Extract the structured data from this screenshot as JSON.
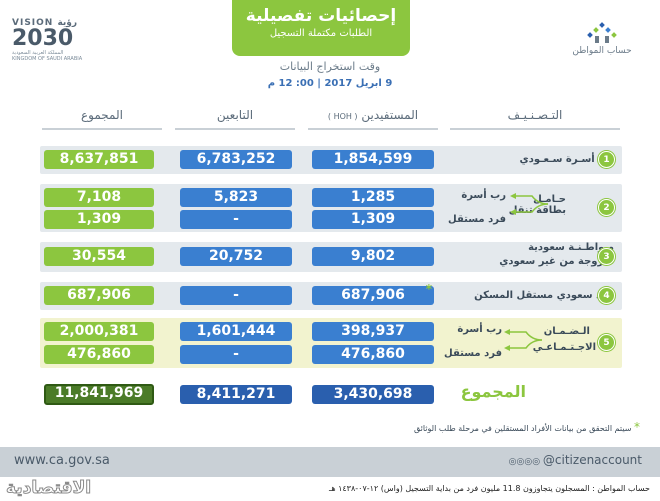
{
  "header": {
    "vision": {
      "line1": "VISION رؤية",
      "line2": "2030",
      "line3": "المملكة العربية السعودية",
      "line4": "KINGDOM OF SAUDI ARABIA"
    },
    "title": "إحصائيات تفصيلية",
    "subtitle": "الطلبات مكتملة التسجيل",
    "logo_text": "حساب المواطن",
    "extract_label": "وقت استخراج البيانات",
    "extract_time": "9 ابريل 2017 | 00: 12 م"
  },
  "columns": {
    "category": "التـصـنـيـف",
    "beneficiaries": "المستفيدين",
    "beneficiaries_note": "( HOH )",
    "dependents": "التابعين",
    "total": "المجموع"
  },
  "rows": [
    {
      "num": "1",
      "label": "رب أسـرة سـعـودي",
      "beneficiaries": "1,854,599",
      "dependents": "6,783,252",
      "total": "8,637,851"
    },
    {
      "num": "2",
      "label": "حـامـل بطاقة تنقل",
      "sub": [
        {
          "label": "رب أسرة",
          "beneficiaries": "1,285",
          "dependents": "5,823",
          "total": "7,108"
        },
        {
          "label": "فرد مستقل",
          "beneficiaries": "1,309",
          "dependents": "-",
          "total": "1,309"
        }
      ]
    },
    {
      "num": "3",
      "label": "مـواطـنـة سعودية",
      "label2": "متزوجة من غير سعودي",
      "beneficiaries": "9,802",
      "dependents": "20,752",
      "total": "30,554"
    },
    {
      "num": "4",
      "label": "فرد سعودي مستقل المسكن",
      "star": "*",
      "beneficiaries": "687,906",
      "dependents": "-",
      "total": "687,906"
    },
    {
      "num": "5",
      "label": "الـضـمـان",
      "label2": "الاجـتـمـاعـي",
      "sub": [
        {
          "label": "رب أسرة",
          "beneficiaries": "398,937",
          "dependents": "1,601,444",
          "total": "2,000,381"
        },
        {
          "label": "فرد مستقل",
          "beneficiaries": "476,860",
          "dependents": "-",
          "total": "476,860"
        }
      ]
    }
  ],
  "totals": {
    "label": "المجموع",
    "beneficiaries": "3,430,698",
    "dependents": "8,411,271",
    "total": "11,841,969"
  },
  "footnote": {
    "star": "*",
    "text": "سيتم التحقق من بيانات الأفراد المستقلين في مرحلة طلب الوثائق"
  },
  "footer": {
    "site": "www.ca.gov.sa",
    "handle": "@citizenaccount",
    "brand": "الاقتصادية",
    "source": "حساب المواطن : المسجلون يتجاوزون 11.8 مليون فرد من بداية التسجيل (واس) ١٢-٠٧-١٤٣٨ هـ"
  },
  "colors": {
    "green": "#8cc63f",
    "blue": "#3a7fd0",
    "dark_green": "#4b7b28",
    "dark_blue": "#2a5fae",
    "gray_row": "#e4e9ed",
    "yellow_row": "#f2f3cf"
  }
}
